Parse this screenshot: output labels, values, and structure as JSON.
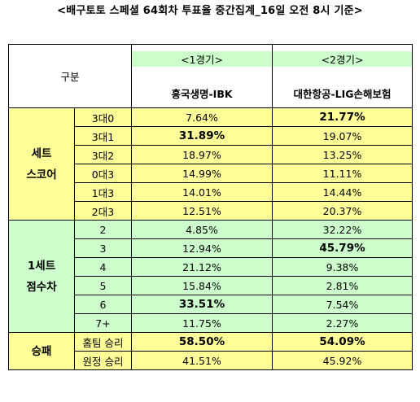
{
  "title": "<배구토토 스페셜 64회차 투표율 중간집계_16일 오전 8시 기준>",
  "header": {
    "category": "구분",
    "game1_label": "<1경기>",
    "game1_teams": "흥국생명-IBK",
    "game2_label": "<2경기>",
    "game2_teams": "대한항공-LIG손해보험"
  },
  "sections": [
    {
      "name_line1": "세트",
      "name_line2": "스코어",
      "color": "#ffff99",
      "rows": [
        {
          "label": "3대0",
          "g1": "7.64%",
          "g2": "21.77%",
          "bold1": false,
          "bold2": true
        },
        {
          "label": "3대1",
          "g1": "31.89%",
          "g2": "19.07%",
          "bold1": true,
          "bold2": false
        },
        {
          "label": "3대2",
          "g1": "18.97%",
          "g2": "13.25%",
          "bold1": false,
          "bold2": false
        },
        {
          "label": "0대3",
          "g1": "14.99%",
          "g2": "11.11%",
          "bold1": false,
          "bold2": false
        },
        {
          "label": "1대3",
          "g1": "14.01%",
          "g2": "14.44%",
          "bold1": false,
          "bold2": false
        },
        {
          "label": "2대3",
          "g1": "12.51%",
          "g2": "20.37%",
          "bold1": false,
          "bold2": false
        }
      ]
    },
    {
      "name_line1": "1세트",
      "name_line2": "점수차",
      "color": "#ccffcc",
      "rows": [
        {
          "label": "2",
          "g1": "4.85%",
          "g2": "32.22%",
          "bold1": false,
          "bold2": false
        },
        {
          "label": "3",
          "g1": "12.94%",
          "g2": "45.79%",
          "bold1": false,
          "bold2": true
        },
        {
          "label": "4",
          "g1": "21.12%",
          "g2": "9.38%",
          "bold1": false,
          "bold2": false
        },
        {
          "label": "5",
          "g1": "15.84%",
          "g2": "2.81%",
          "bold1": false,
          "bold2": false
        },
        {
          "label": "6",
          "g1": "33.51%",
          "g2": "7.54%",
          "bold1": true,
          "bold2": false
        },
        {
          "label": "7+",
          "g1": "11.75%",
          "g2": "2.27%",
          "bold1": false,
          "bold2": false
        }
      ]
    },
    {
      "name_line1": "승패",
      "name_line2": "",
      "color": "#ffff99",
      "rows": [
        {
          "label": "홈팀 승리",
          "g1": "58.50%",
          "g2": "54.09%",
          "bold1": true,
          "bold2": true
        },
        {
          "label": "원정 승리",
          "g1": "41.51%",
          "g2": "45.92%",
          "bold1": false,
          "bold2": false
        }
      ]
    }
  ]
}
